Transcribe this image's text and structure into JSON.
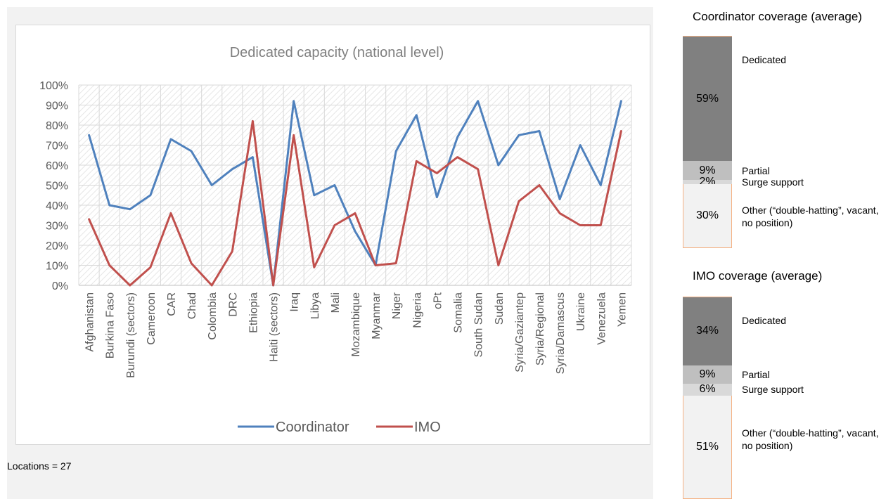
{
  "chart_data": {
    "type": "line",
    "title": "Dedicated capacity (national level)",
    "categories": [
      "Afghanistan",
      "Burkina Faso",
      "Burundi (sectors)",
      "Cameroon",
      "CAR",
      "Chad",
      "Colombia",
      "DRC",
      "Ethiopia",
      "Haiti (sectors)",
      "Iraq",
      "Libya",
      "Mali",
      "Mozambique",
      "Myanmar",
      "Niger",
      "Nigeria",
      "oPt",
      "Somalia",
      "South Sudan",
      "Sudan",
      "Syria/Gaziantep",
      "Syria/Regional",
      "Syria/Damascus",
      "Ukraine",
      "Venezuela",
      "Yemen"
    ],
    "series": [
      {
        "name": "Coordinator",
        "color": "#4f81bd",
        "values": [
          75,
          40,
          38,
          45,
          73,
          67,
          50,
          58,
          64,
          0,
          92,
          45,
          50,
          27,
          10,
          67,
          85,
          44,
          74,
          92,
          60,
          75,
          77,
          43,
          70,
          50,
          92
        ]
      },
      {
        "name": "IMO",
        "color": "#c0504d",
        "values": [
          33,
          10,
          0,
          9,
          36,
          11,
          0,
          17,
          82,
          0,
          75,
          9,
          30,
          36,
          10,
          11,
          62,
          56,
          64,
          58,
          10,
          42,
          50,
          36,
          30,
          30,
          77
        ]
      }
    ],
    "ylim": [
      0,
      100
    ],
    "yticks": [
      "0%",
      "10%",
      "20%",
      "30%",
      "40%",
      "50%",
      "60%",
      "70%",
      "80%",
      "90%",
      "100%"
    ],
    "legend_position": "bottom",
    "grid": true
  },
  "note": "Locations = 27",
  "coordinator_coverage": {
    "title": "Coordinator coverage (average)",
    "segments": [
      {
        "value": 59,
        "text": "59%",
        "label": "Dedicated",
        "color": "#808080"
      },
      {
        "value": 9,
        "text": "9%",
        "label": "Partial",
        "color": "#bfbfbf"
      },
      {
        "value": 2,
        "text": "2%",
        "label": "Surge support",
        "color": "#d9d9d9"
      },
      {
        "value": 30,
        "text": "30%",
        "label": "Other (“double-hatting”, vacant, no position)",
        "color": "#f2f2f2"
      }
    ]
  },
  "imo_coverage": {
    "title": "IMO coverage (average)",
    "segments": [
      {
        "value": 34,
        "text": "34%",
        "label": "Dedicated",
        "color": "#808080"
      },
      {
        "value": 9,
        "text": "9%",
        "label": "Partial",
        "color": "#bfbfbf"
      },
      {
        "value": 6,
        "text": "6%",
        "label": "Surge support",
        "color": "#d9d9d9"
      },
      {
        "value": 51,
        "text": "51%",
        "label": "Other (“double-hatting”, vacant, no position)",
        "color": "#f2f2f2"
      }
    ]
  }
}
